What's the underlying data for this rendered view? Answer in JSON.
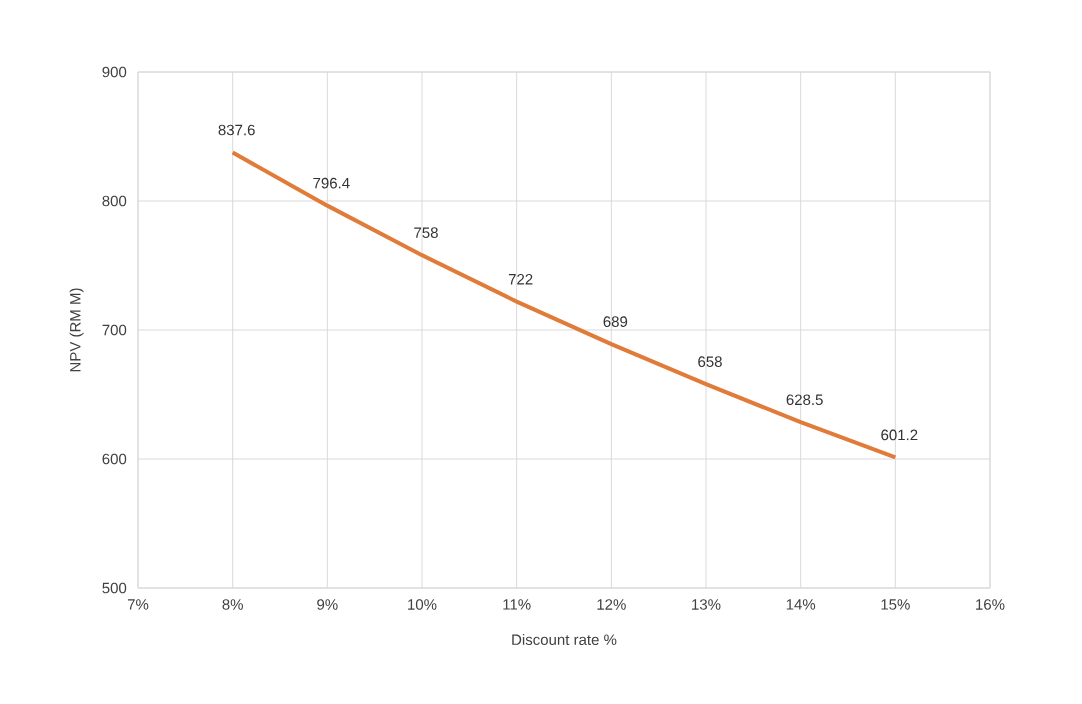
{
  "chart_data": {
    "type": "line",
    "xlabel": "Discount rate %",
    "ylabel": "NPV (RM M)",
    "x": [
      8,
      9,
      10,
      11,
      12,
      13,
      14,
      15
    ],
    "series": [
      {
        "color": "#e07b39",
        "values": [
          837.6,
          796.4,
          758,
          722,
          689,
          658,
          628.5,
          601.2
        ]
      }
    ],
    "xlim": [
      7,
      16
    ],
    "ylim": [
      500,
      900
    ],
    "xticks": [
      {
        "value": 7,
        "label": "7%"
      },
      {
        "value": 8,
        "label": "8%"
      },
      {
        "value": 9,
        "label": "9%"
      },
      {
        "value": 10,
        "label": "10%"
      },
      {
        "value": 11,
        "label": "11%"
      },
      {
        "value": 12,
        "label": "12%"
      },
      {
        "value": 13,
        "label": "13%"
      },
      {
        "value": 14,
        "label": "14%"
      },
      {
        "value": 15,
        "label": "15%"
      },
      {
        "value": 16,
        "label": "16%"
      }
    ],
    "yticks": [
      500,
      600,
      700,
      800,
      900
    ],
    "grid": true,
    "data_labels": true,
    "marker": "none",
    "line_style": "solid"
  }
}
